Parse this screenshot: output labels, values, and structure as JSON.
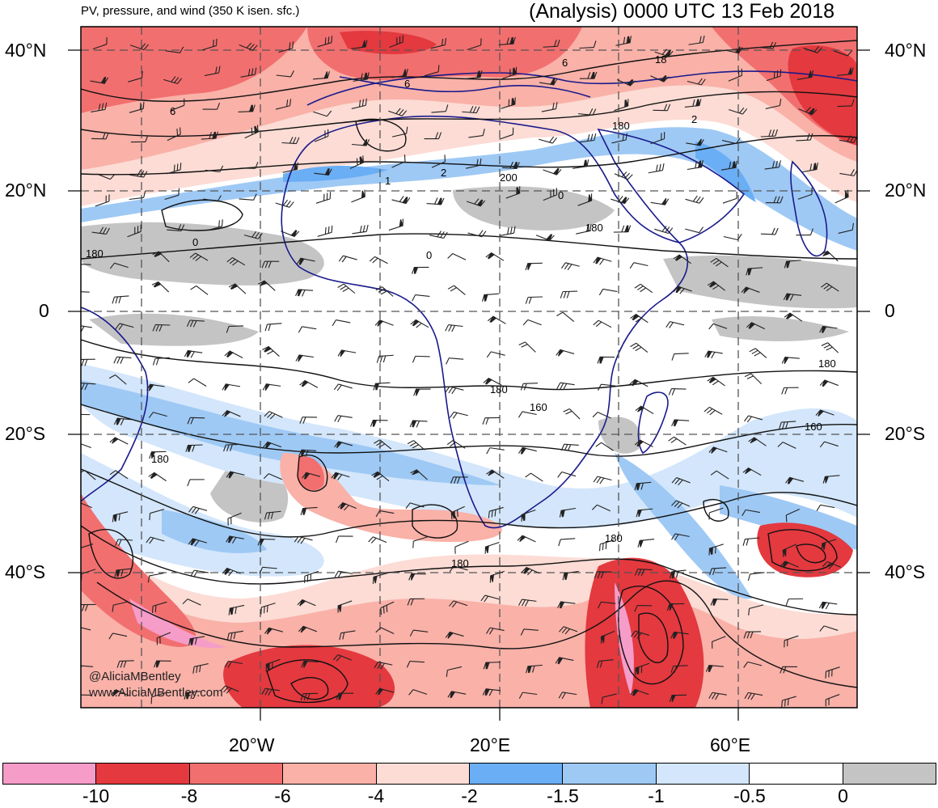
{
  "header": {
    "title_left": "PV, pressure, and wind (350 K isen. sfc.)",
    "title_right": "(Analysis) 0000 UTC 13 Feb 2018"
  },
  "axes": {
    "lat_labels": [
      "40°N",
      "20°N",
      "0",
      "20°S",
      "40°S"
    ],
    "lon_labels": [
      "20°W",
      "20°E",
      "60°E"
    ]
  },
  "contour_labels": [
    "6",
    "6",
    "6",
    "18",
    "180",
    "2",
    "2",
    "1",
    "200",
    "0",
    "0",
    "180",
    "180",
    "0",
    "180",
    "180",
    "160",
    "160",
    "180",
    "180",
    "180"
  ],
  "credits": {
    "handle": "@AliciaMBentley",
    "site": "www.AliciaMBentley.com"
  },
  "colorbar": {
    "colors": [
      "#f59cc9",
      "#e3393f",
      "#f26f6f",
      "#f9b1a8",
      "#fcdcd5",
      "#6aaef5",
      "#9ec9f5",
      "#d3e6fb",
      "#ffffff",
      "#c4c4c4"
    ],
    "labels": [
      "-10",
      "-8",
      "-6",
      "-4",
      "-2",
      "-1.5",
      "-1",
      "-0.5",
      "0"
    ]
  },
  "map_colors": {
    "ocean_white": "#ffffff",
    "grey": "#c4c4c4",
    "coast": "#1a1a8c",
    "contour": "#111111",
    "grid": "#555555"
  }
}
